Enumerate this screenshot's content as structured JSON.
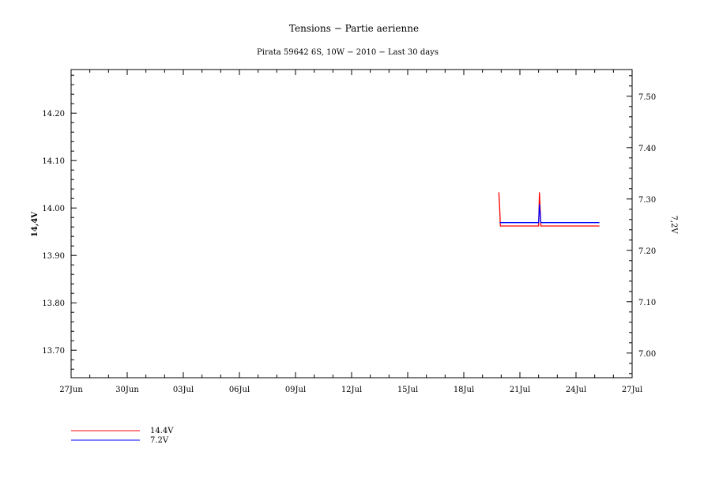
{
  "chart_data": {
    "type": "line",
    "title": "Tensions − Partie aerienne",
    "subtitle": "Pirata 59642 6S, 10W − 2010 − Last 30 days",
    "xlabel": "",
    "ylabel_left": "14,4V",
    "ylabel_right": "7,2V",
    "xlim": [
      "2010-06-27",
      "2010-07-27"
    ],
    "ylim_left": [
      13.642,
      14.292
    ],
    "ylim_right": [
      6.952,
      7.552
    ],
    "x_ticks": [
      "27Jun",
      "30Jun",
      "03Jul",
      "06Jul",
      "09Jul",
      "12Jul",
      "15Jul",
      "18Jul",
      "21Jul",
      "24Jul",
      "27Jul"
    ],
    "y_ticks_left": [
      "13.70",
      "13.80",
      "13.90",
      "14.00",
      "14.10",
      "14.20"
    ],
    "y_ticks_right": [
      "7.00",
      "7.10",
      "7.20",
      "7.30",
      "7.40",
      "7.50"
    ],
    "grid": false,
    "legend": "bottom-left",
    "series": [
      {
        "name": "14.4V",
        "axis": "left",
        "color": "#ff0000",
        "x": [
          "2010-07-19T21:00",
          "2010-07-19T22:00",
          "2010-07-19T23:00",
          "2010-07-22T00:00",
          "2010-07-22T01:00",
          "2010-07-22T02:00",
          "2010-07-22T03:00",
          "2010-07-25T06:00"
        ],
        "y": [
          14.033,
          14.0,
          13.962,
          13.962,
          14.033,
          14.0,
          13.962,
          13.962
        ]
      },
      {
        "name": "7.2V",
        "axis": "right",
        "color": "#0000ff",
        "x": [
          "2010-07-19T22:00",
          "2010-07-22T00:00",
          "2010-07-22T01:00",
          "2010-07-22T03:00",
          "2010-07-25T06:00"
        ],
        "y": [
          7.254,
          7.254,
          7.29,
          7.254,
          7.254
        ]
      }
    ]
  }
}
